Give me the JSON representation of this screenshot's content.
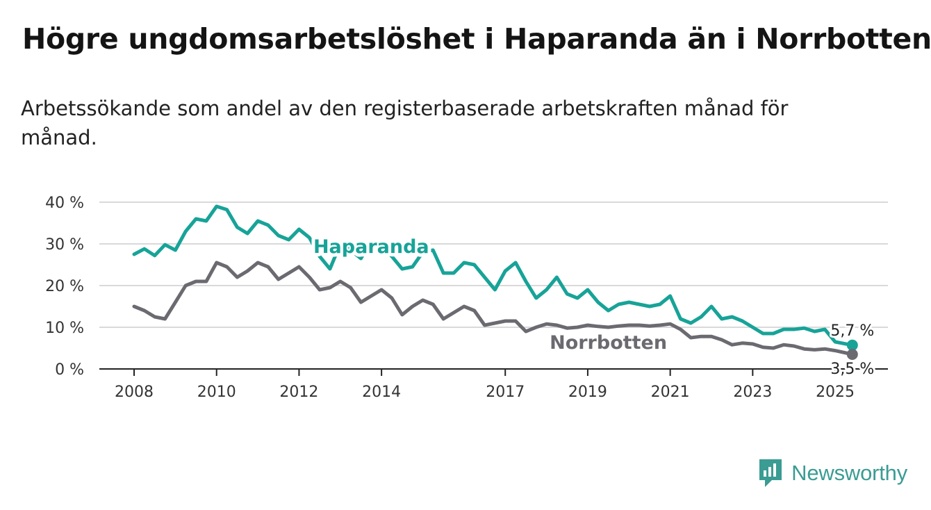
{
  "title": "Högre ungdomsarbetslöshet i Haparanda än i Norrbotten",
  "subtitle": "Arbetssökande som andel av den registerbaserade arbetskraften månad för månad.",
  "brand": {
    "name": "Newsworthy",
    "icon": "bar-chart-logo-icon"
  },
  "colors": {
    "haparanda": "#17a398",
    "norrbotten": "#6b6a70",
    "grid": "#d9d9d9",
    "axis": "#222222"
  },
  "chart_data": {
    "type": "line",
    "title": "Högre ungdomsarbetslöshet i Haparanda än i Norrbotten",
    "x_axis": {
      "type": "date",
      "min": "2008-01",
      "max": "2025-06",
      "tick_labels": [
        "2008",
        "2010",
        "2012",
        "2014",
        "2017",
        "2019",
        "2021",
        "2023",
        "2025"
      ],
      "tick_positions": [
        "2008-01",
        "2010-01",
        "2012-01",
        "2014-01",
        "2017-01",
        "2019-01",
        "2021-01",
        "2023-01",
        "2025-01"
      ]
    },
    "y_axis": {
      "min": 0,
      "max": 40,
      "ticks": [
        0,
        10,
        20,
        30,
        40
      ],
      "tick_labels": [
        "0 %",
        "10 %",
        "20 %",
        "30 %",
        "40 %"
      ]
    },
    "grid": true,
    "legend": "inline labels",
    "series": [
      {
        "name": "Haparanda",
        "end_label": "5,7 %",
        "points": [
          [
            "2008-01",
            27.5
          ],
          [
            "2008-04",
            28.8
          ],
          [
            "2008-07",
            27.2
          ],
          [
            "2008-10",
            29.8
          ],
          [
            "2009-01",
            28.5
          ],
          [
            "2009-04",
            33
          ],
          [
            "2009-07",
            36
          ],
          [
            "2009-10",
            35.5
          ],
          [
            "2010-01",
            39
          ],
          [
            "2010-04",
            38.2
          ],
          [
            "2010-07",
            34
          ],
          [
            "2010-10",
            32.5
          ],
          [
            "2011-01",
            35.5
          ],
          [
            "2011-04",
            34.5
          ],
          [
            "2011-07",
            32
          ],
          [
            "2011-10",
            31
          ],
          [
            "2012-01",
            33.5
          ],
          [
            "2012-04",
            31.5
          ],
          [
            "2012-07",
            27
          ],
          [
            "2012-10",
            24
          ],
          [
            "2013-01",
            30
          ],
          [
            "2013-04",
            28.5
          ],
          [
            "2013-07",
            26.5
          ],
          [
            "2013-10",
            30.5
          ],
          [
            "2014-01",
            29.5
          ],
          [
            "2014-04",
            27
          ],
          [
            "2014-07",
            24
          ],
          [
            "2014-10",
            24.5
          ],
          [
            "2015-01",
            28
          ],
          [
            "2015-04",
            28.5
          ],
          [
            "2015-07",
            23
          ],
          [
            "2015-10",
            23
          ],
          [
            "2016-01",
            25.5
          ],
          [
            "2016-04",
            25
          ],
          [
            "2016-07",
            22
          ],
          [
            "2016-10",
            19
          ],
          [
            "2017-01",
            23.5
          ],
          [
            "2017-04",
            25.5
          ],
          [
            "2017-07",
            21
          ],
          [
            "2017-10",
            17
          ],
          [
            "2018-01",
            19
          ],
          [
            "2018-04",
            22
          ],
          [
            "2018-07",
            18
          ],
          [
            "2018-10",
            17
          ],
          [
            "2019-01",
            19
          ],
          [
            "2019-04",
            16
          ],
          [
            "2019-07",
            14
          ],
          [
            "2019-10",
            15.5
          ],
          [
            "2020-01",
            16
          ],
          [
            "2020-04",
            15.5
          ],
          [
            "2020-07",
            15
          ],
          [
            "2020-10",
            15.5
          ],
          [
            "2021-01",
            17.5
          ],
          [
            "2021-04",
            12
          ],
          [
            "2021-07",
            11
          ],
          [
            "2021-10",
            12.5
          ],
          [
            "2022-01",
            15
          ],
          [
            "2022-04",
            12
          ],
          [
            "2022-07",
            12.5
          ],
          [
            "2022-10",
            11.5
          ],
          [
            "2023-01",
            10
          ],
          [
            "2023-04",
            8.5
          ],
          [
            "2023-07",
            8.5
          ],
          [
            "2023-10",
            9.5
          ],
          [
            "2024-01",
            9.5
          ],
          [
            "2024-04",
            9.8
          ],
          [
            "2024-07",
            9
          ],
          [
            "2024-10",
            9.5
          ],
          [
            "2025-01",
            6.5
          ],
          [
            "2025-06",
            5.7
          ]
        ]
      },
      {
        "name": "Norrbotten",
        "end_label": "3,5 %",
        "points": [
          [
            "2008-01",
            15
          ],
          [
            "2008-04",
            14
          ],
          [
            "2008-07",
            12.5
          ],
          [
            "2008-10",
            12
          ],
          [
            "2009-01",
            16
          ],
          [
            "2009-04",
            20
          ],
          [
            "2009-07",
            21
          ],
          [
            "2009-10",
            21
          ],
          [
            "2010-01",
            25.5
          ],
          [
            "2010-04",
            24.5
          ],
          [
            "2010-07",
            22
          ],
          [
            "2010-10",
            23.5
          ],
          [
            "2011-01",
            25.5
          ],
          [
            "2011-04",
            24.5
          ],
          [
            "2011-07",
            21.5
          ],
          [
            "2011-10",
            23
          ],
          [
            "2012-01",
            24.5
          ],
          [
            "2012-04",
            22
          ],
          [
            "2012-07",
            19
          ],
          [
            "2012-10",
            19.5
          ],
          [
            "2013-01",
            21
          ],
          [
            "2013-04",
            19.5
          ],
          [
            "2013-07",
            16
          ],
          [
            "2013-10",
            17.5
          ],
          [
            "2014-01",
            19
          ],
          [
            "2014-04",
            17
          ],
          [
            "2014-07",
            13
          ],
          [
            "2014-10",
            15
          ],
          [
            "2015-01",
            16.5
          ],
          [
            "2015-04",
            15.5
          ],
          [
            "2015-07",
            12
          ],
          [
            "2015-10",
            13.5
          ],
          [
            "2016-01",
            15
          ],
          [
            "2016-04",
            14
          ],
          [
            "2016-07",
            10.5
          ],
          [
            "2016-10",
            11
          ],
          [
            "2017-01",
            11.5
          ],
          [
            "2017-04",
            11.5
          ],
          [
            "2017-07",
            9
          ],
          [
            "2017-10",
            10
          ],
          [
            "2018-01",
            10.8
          ],
          [
            "2018-04",
            10.5
          ],
          [
            "2018-07",
            9.8
          ],
          [
            "2018-10",
            10
          ],
          [
            "2019-01",
            10.5
          ],
          [
            "2019-04",
            10.2
          ],
          [
            "2019-07",
            10
          ],
          [
            "2019-10",
            10.3
          ],
          [
            "2020-01",
            10.5
          ],
          [
            "2020-04",
            10.5
          ],
          [
            "2020-07",
            10.3
          ],
          [
            "2020-10",
            10.5
          ],
          [
            "2021-01",
            10.8
          ],
          [
            "2021-04",
            9.5
          ],
          [
            "2021-07",
            7.5
          ],
          [
            "2021-10",
            7.8
          ],
          [
            "2022-01",
            7.8
          ],
          [
            "2022-04",
            7
          ],
          [
            "2022-07",
            5.8
          ],
          [
            "2022-10",
            6.2
          ],
          [
            "2023-01",
            6
          ],
          [
            "2023-04",
            5.2
          ],
          [
            "2023-07",
            5
          ],
          [
            "2023-10",
            5.8
          ],
          [
            "2024-01",
            5.5
          ],
          [
            "2024-04",
            4.8
          ],
          [
            "2024-07",
            4.6
          ],
          [
            "2024-10",
            4.8
          ],
          [
            "2025-01",
            4.4
          ],
          [
            "2025-06",
            3.5
          ]
        ]
      }
    ]
  }
}
